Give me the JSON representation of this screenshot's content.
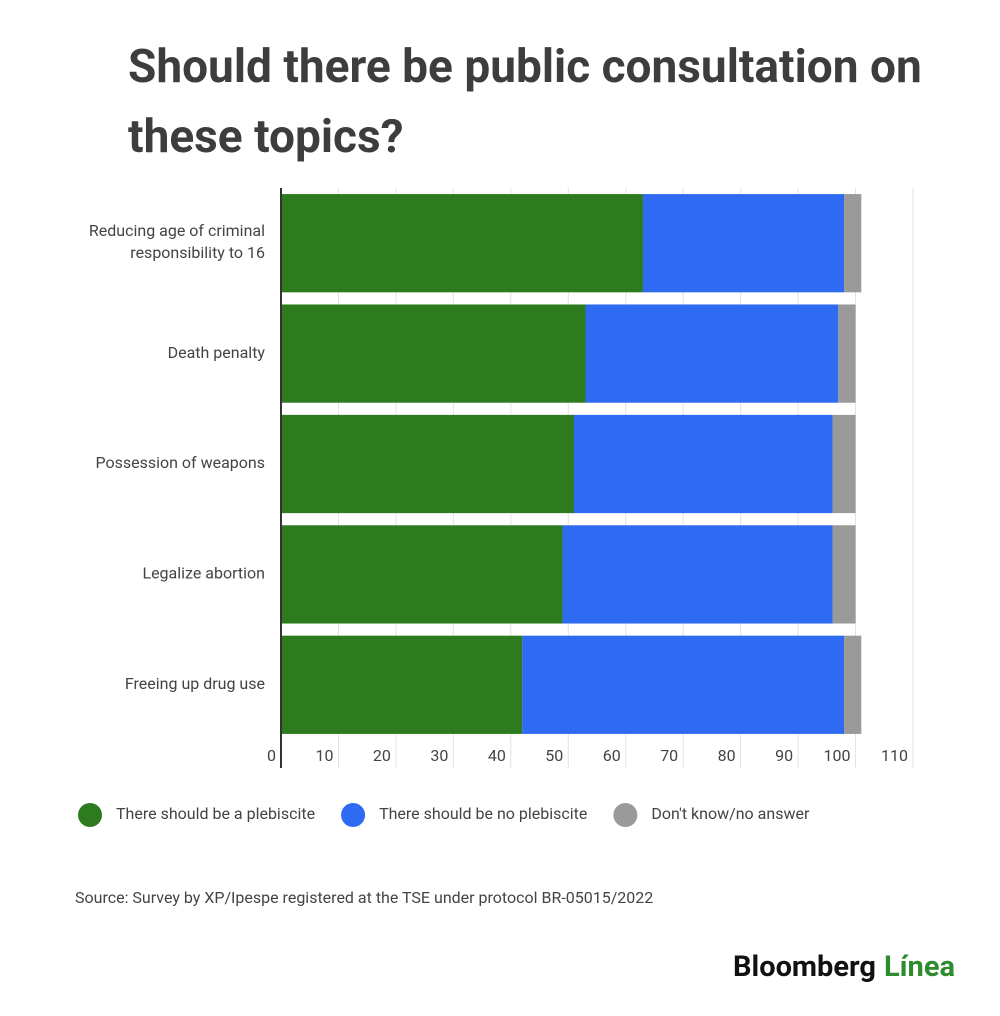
{
  "chart_data": {
    "type": "stacked-bar-horizontal",
    "title": "Should there be public consultation on these topics?",
    "categories": [
      "Reducing age of criminal responsibility to 16",
      "Death penalty",
      "Possession of weapons",
      "Legalize abortion",
      "Freeing up drug use"
    ],
    "series": [
      {
        "name": "There should be a plebiscite",
        "color": "#2e7a1f",
        "values": [
          63,
          53,
          51,
          49,
          42
        ]
      },
      {
        "name": "There should be no plebiscite",
        "color": "#2f6af2",
        "values": [
          35,
          44,
          45,
          47,
          56
        ]
      },
      {
        "name": "Don't know/no answer",
        "color": "#9a9a9a",
        "values": [
          3,
          3,
          4,
          4,
          3
        ]
      }
    ],
    "xlim": [
      0,
      110
    ],
    "xticks": [
      0,
      10,
      20,
      30,
      40,
      50,
      60,
      70,
      80,
      90,
      100,
      110
    ],
    "grid": true,
    "source": "Source: Survey by XP/Ipespe registered at the TSE under protocol BR-05015/2022",
    "brand": "Bloomberg",
    "brand_suffix": "Línea"
  }
}
